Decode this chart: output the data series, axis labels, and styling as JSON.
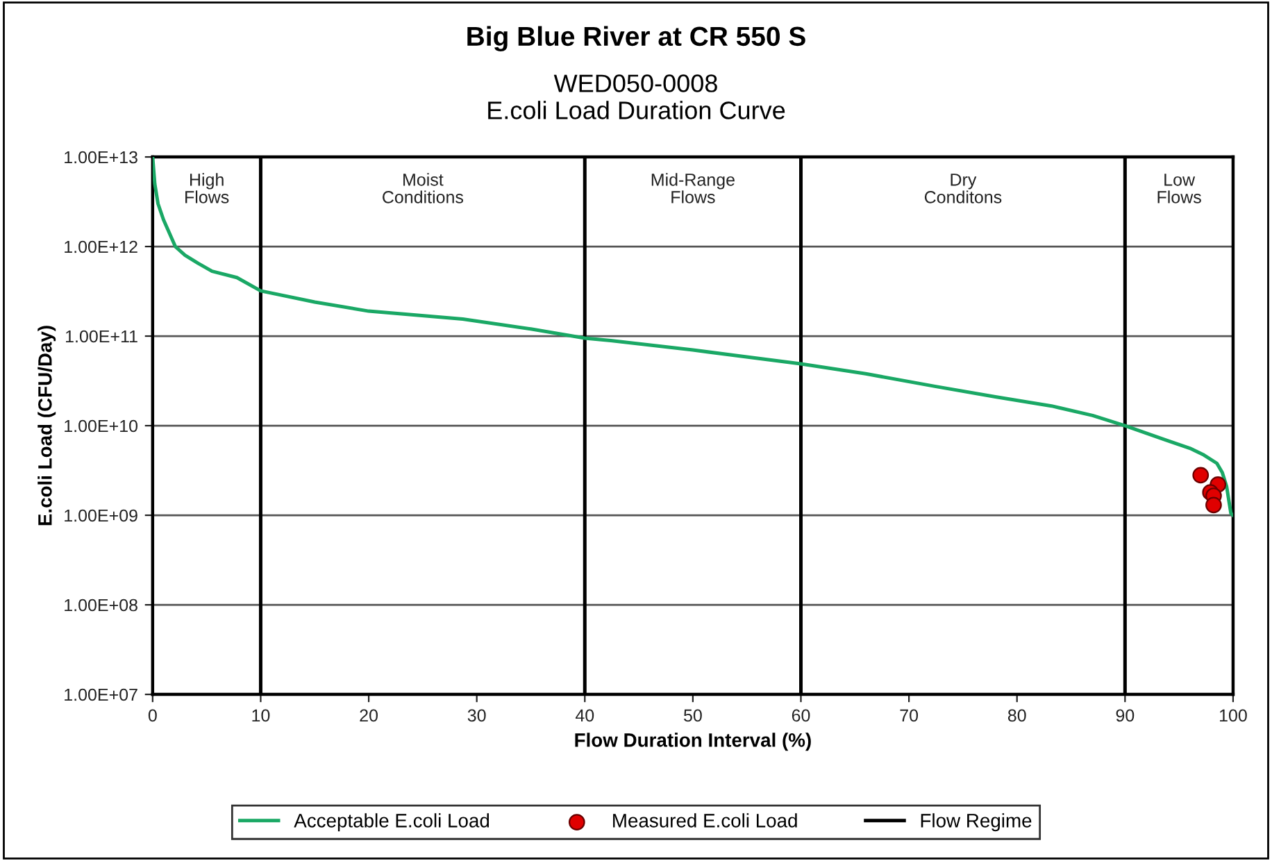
{
  "chart_data": {
    "type": "line",
    "title": "Big Blue River at CR 550 S",
    "subtitle": "WED050-0008\nE.coli Load Duration Curve",
    "xlabel": "Flow Duration Interval (%)",
    "ylabel": "E.coli Load (CFU/Day)",
    "log": "y",
    "xlim": [
      0,
      100
    ],
    "xticks": [
      0,
      10,
      20,
      30,
      40,
      50,
      60,
      70,
      80,
      90,
      100
    ],
    "ylim": [
      10000000.0,
      10000000000000.0
    ],
    "yticks": [
      {
        "value": 10000000.0,
        "label": "1.00E+07"
      },
      {
        "value": 100000000.0,
        "label": "1.00E+08"
      },
      {
        "value": 1000000000.0,
        "label": "1.00E+09"
      },
      {
        "value": 10000000000.0,
        "label": "1.00E+10"
      },
      {
        "value": 100000000000.0,
        "label": "1.00E+11"
      },
      {
        "value": 1000000000000.0,
        "label": "1.00E+12"
      },
      {
        "value": 10000000000000.0,
        "label": "1.00E+13"
      }
    ],
    "grid": "y",
    "legend": "bottom",
    "series": [
      {
        "name": "Acceptable E.coli Load",
        "color": "#1aa865",
        "marker": "none",
        "x": [
          0,
          0.2,
          0.5,
          1,
          2.1,
          3,
          4.2,
          5.5,
          7.8,
          10,
          15,
          20,
          28.7,
          35,
          40,
          42.4,
          50,
          60,
          66,
          72.4,
          78,
          83.2,
          87,
          90,
          93.8,
          96,
          97.3,
          98.5,
          99,
          99.4,
          99.8,
          100
        ],
        "values": [
          10000000000000.0,
          5000000000000.0,
          3000000000000.0,
          2000000000000.0,
          1000000000000.0,
          800000000000.0,
          650000000000.0,
          530000000000.0,
          450000000000.0,
          320000000000.0,
          240000000000.0,
          190000000000.0,
          155000000000.0,
          120000000000.0,
          95000000000.0,
          89000000000.0,
          70000000000.0,
          49000000000.0,
          38000000000.0,
          27500000000.0,
          21000000000.0,
          16600000000.0,
          13000000000.0,
          10000000000.0,
          6900000000.0,
          5600000000.0,
          4700000000.0,
          3800000000.0,
          3000000000.0,
          2100000000.0,
          1050000000.0,
          1000000000.0
        ]
      },
      {
        "name": "Measured E.coli Load",
        "type": "scatter",
        "color": "#e00000",
        "marker": "circle",
        "x": [
          97.0,
          98.6,
          97.9,
          98.2,
          98.2
        ],
        "values": [
          2800000000.0,
          2200000000.0,
          1800000000.0,
          1650000000.0,
          1300000000.0
        ]
      }
    ],
    "ref_lines": [
      {
        "axis": "x",
        "value": 10,
        "label": "Flow Regime",
        "color": "#000000"
      },
      {
        "axis": "x",
        "value": 40,
        "color": "#000000"
      },
      {
        "axis": "x",
        "value": 60,
        "color": "#000000"
      },
      {
        "axis": "x",
        "value": 90,
        "color": "#000000"
      }
    ],
    "annotations": [
      "High\nFlows",
      "Moist\nConditions",
      "Mid-Range\nFlows",
      "Dry\nConditons",
      "Low\nFlows"
    ]
  }
}
